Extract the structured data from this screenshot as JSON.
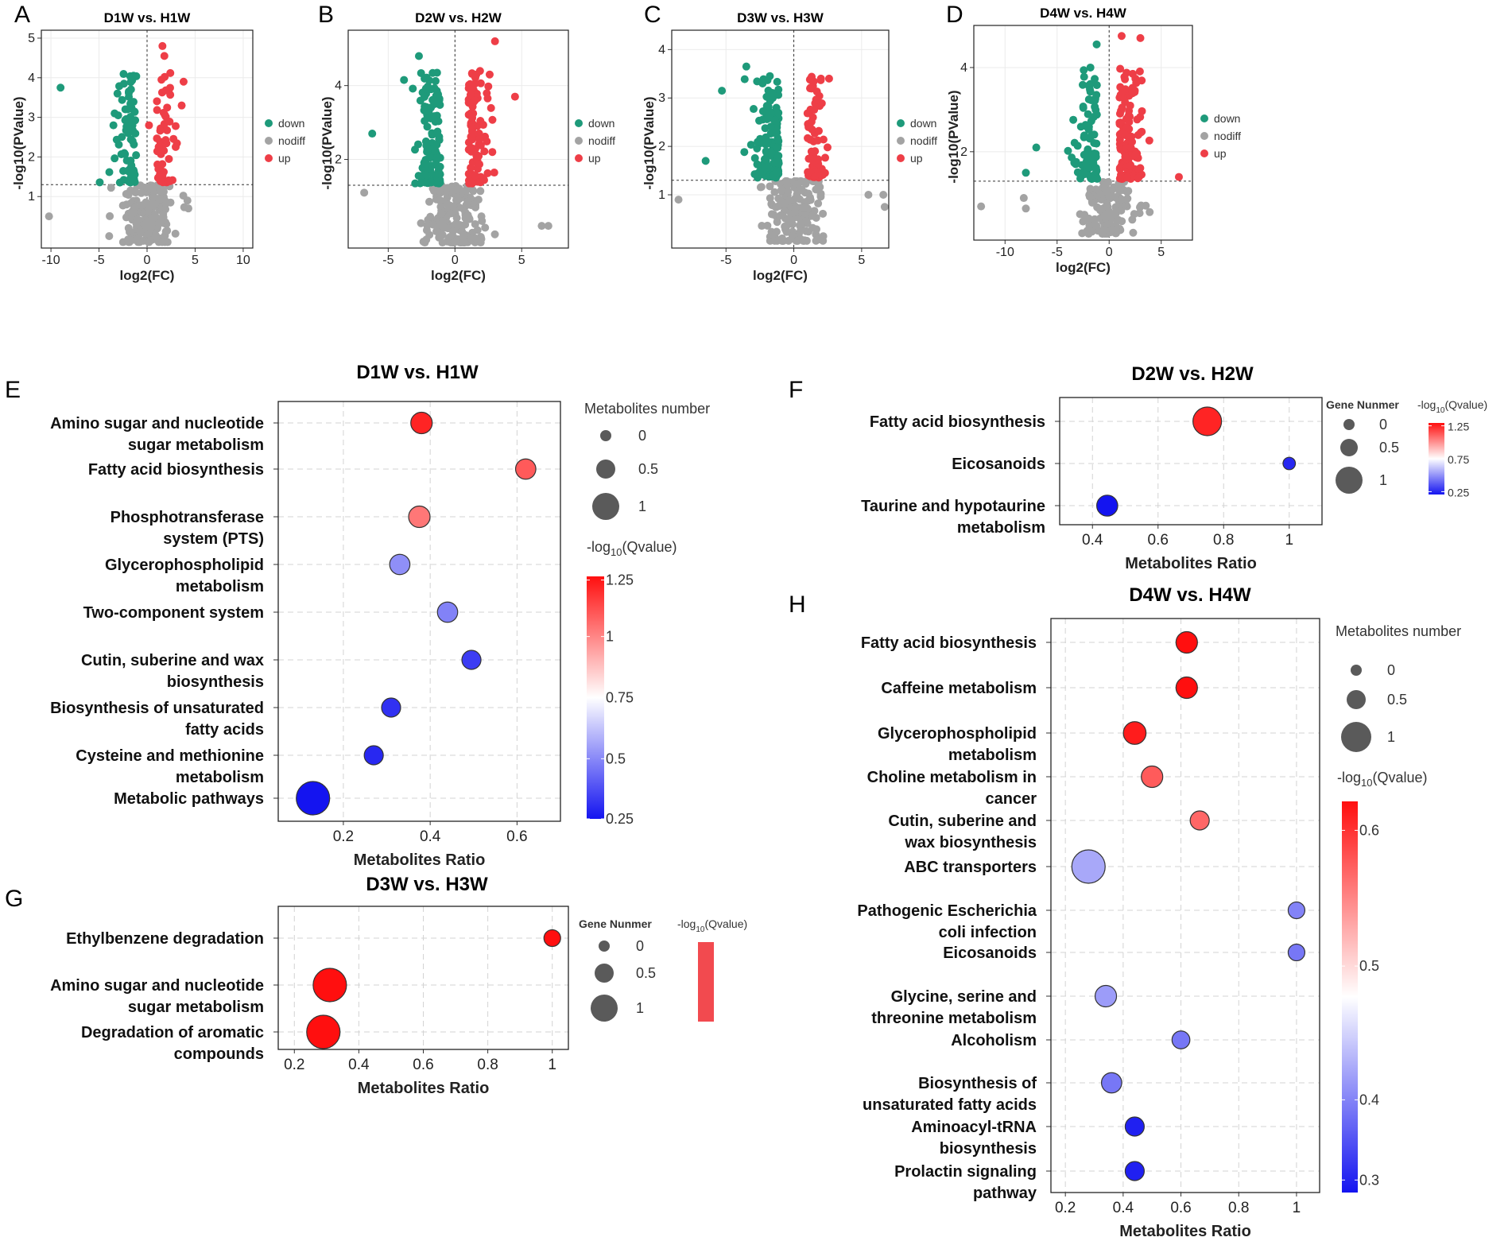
{
  "volcano_panels": [
    {
      "label": "A",
      "title": "D1W vs. H1W",
      "xlabel": "log2(FC)",
      "ylabel": "-log10(PValue)",
      "xlim": [
        -11,
        11
      ],
      "ylim": [
        -0.3,
        5.2
      ],
      "xticks": [
        -10,
        -5,
        0,
        5,
        10
      ],
      "yticks": [
        1,
        2,
        3,
        4,
        5
      ],
      "threshold": 1.3,
      "legend": [
        "down",
        "nodiff",
        "up"
      ],
      "seed": 11,
      "n_down": 70,
      "n_up": 50,
      "n_nodiff": 170,
      "highlights": {
        "down": [
          [
            -9,
            3.75
          ],
          [
            -2.4,
            3.85
          ],
          [
            -3.5,
            2.8
          ]
        ],
        "up": [
          [
            1.6,
            4.8
          ],
          [
            1.8,
            4.55
          ],
          [
            3.8,
            3.9
          ],
          [
            1.5,
            3.95
          ],
          [
            3.6,
            3.3
          ],
          [
            0.2,
            2.8
          ]
        ],
        "nodiff": [
          [
            -10.2,
            0.5
          ],
          [
            4.3,
            0.7
          ],
          [
            4.2,
            0.9
          ]
        ]
      }
    },
    {
      "label": "B",
      "title": "D2W vs. H2W",
      "xlabel": "log2(FC)",
      "ylabel": "-log10(PValue)",
      "xlim": [
        -8,
        8.5
      ],
      "ylim": [
        -0.4,
        5.5
      ],
      "xticks": [
        -5,
        0,
        5
      ],
      "yticks": [
        2,
        4
      ],
      "threshold": 1.3,
      "legend": [
        "down",
        "nodiff",
        "up"
      ],
      "seed": 23,
      "n_down": 110,
      "n_up": 90,
      "n_nodiff": 160,
      "highlights": {
        "down": [
          [
            -2.7,
            4.8
          ],
          [
            -1.8,
            3.9
          ],
          [
            -6.2,
            2.7
          ]
        ],
        "up": [
          [
            3,
            5.2
          ],
          [
            1.6,
            4.3
          ],
          [
            2.6,
            4.3
          ],
          [
            4.5,
            3.7
          ]
        ],
        "nodiff": [
          [
            6.5,
            0.2
          ],
          [
            7,
            0.2
          ],
          [
            -6.8,
            1.1
          ]
        ]
      }
    },
    {
      "label": "C",
      "title": "D3W vs. H3W",
      "xlabel": "log2(FC)",
      "ylabel": "-log10(PValue)",
      "xlim": [
        -9,
        7
      ],
      "ylim": [
        -0.1,
        4.4
      ],
      "xticks": [
        -5,
        0,
        5
      ],
      "yticks": [
        1,
        2,
        3,
        4
      ],
      "threshold": 1.3,
      "legend": [
        "down",
        "nodiff",
        "up"
      ],
      "seed": 37,
      "n_down": 120,
      "n_up": 60,
      "n_nodiff": 170,
      "highlights": {
        "down": [
          [
            -3.5,
            3.65
          ],
          [
            -2.3,
            3.3
          ],
          [
            -5.3,
            3.15
          ],
          [
            -6.5,
            1.7
          ]
        ],
        "up": [
          [
            2,
            3.4
          ],
          [
            2.6,
            3.4
          ],
          [
            1.2,
            3.2
          ]
        ],
        "nodiff": [
          [
            -8.5,
            0.9
          ],
          [
            6.6,
            1
          ],
          [
            6.7,
            0.75
          ],
          [
            5.5,
            1
          ]
        ]
      }
    },
    {
      "label": "D",
      "title": "D4W vs. H4W",
      "xlabel": "log2(FC)",
      "ylabel": "-log10(PValue)",
      "xlim": [
        -13,
        8
      ],
      "ylim": [
        -0.1,
        5
      ],
      "xticks": [
        -10,
        -5,
        0,
        5
      ],
      "yticks": [
        2,
        4
      ],
      "threshold": 1.3,
      "legend": [
        "down",
        "nodiff",
        "up"
      ],
      "seed": 53,
      "n_down": 80,
      "n_up": 130,
      "n_nodiff": 140,
      "highlights": {
        "down": [
          [
            -1.2,
            4.55
          ],
          [
            -1.8,
            4
          ],
          [
            -7,
            2.1
          ],
          [
            -8,
            1.5
          ]
        ],
        "up": [
          [
            1.2,
            4.75
          ],
          [
            3,
            4.7
          ],
          [
            6.7,
            1.4
          ]
        ],
        "nodiff": [
          [
            -12.3,
            0.7
          ],
          [
            -8.2,
            0.9
          ],
          [
            -8,
            0.65
          ]
        ]
      }
    }
  ],
  "chart_data": [
    {
      "type": "scatter",
      "panel": "E",
      "title": "D1W vs. H1W",
      "xlabel": "Metabolites Ratio",
      "xlim": [
        0.05,
        0.7
      ],
      "xticks": [
        0.2,
        0.4,
        0.6
      ],
      "xtick_labels": [
        "0.2",
        "0.4",
        "0.6"
      ],
      "pathways": [
        {
          "label": [
            "Amino sugar and nucleotide",
            "sugar metabolism"
          ],
          "ratio": 0.38,
          "size": 0.5,
          "q": 1.25
        },
        {
          "label": [
            "Fatty acid biosynthesis"
          ],
          "ratio": 0.62,
          "size": 0.45,
          "q": 1.12
        },
        {
          "label": [
            "Phosphotransferase",
            "system (PTS)"
          ],
          "ratio": 0.375,
          "size": 0.5,
          "q": 1.05
        },
        {
          "label": [
            "Glycerophospholipid",
            "metabolism"
          ],
          "ratio": 0.33,
          "size": 0.45,
          "q": 0.45
        },
        {
          "label": [
            "Two-component system"
          ],
          "ratio": 0.44,
          "size": 0.45,
          "q": 0.42
        },
        {
          "label": [
            "Cutin, suberine and wax",
            "biosynthesis"
          ],
          "ratio": 0.495,
          "size": 0.4,
          "q": 0.25
        },
        {
          "label": [
            "Biosynthesis of unsaturated",
            "fatty acids"
          ],
          "ratio": 0.31,
          "size": 0.4,
          "q": 0.22
        },
        {
          "label": [
            "Cysteine and methionine",
            "metabolism"
          ],
          "ratio": 0.27,
          "size": 0.4,
          "q": 0.2
        },
        {
          "label": [
            "Metabolic pathways"
          ],
          "ratio": 0.13,
          "size": 1.0,
          "q": 0.15
        }
      ],
      "size_legend_title": "Metabolites number",
      "size_legend": [
        "0",
        "0.5",
        "1"
      ],
      "color_legend": {
        "title": "-log",
        "sub": "10",
        "suffix": "(Qvalue)",
        "ticks": [
          "1.25",
          "1",
          "0.75",
          "0.5",
          "0.25"
        ],
        "range": [
          0.15,
          1.3
        ]
      }
    },
    {
      "type": "scatter",
      "panel": "F",
      "title": "D2W vs. H2W",
      "xlabel": "Metabolites Ratio",
      "xlim": [
        0.3,
        1.1
      ],
      "xticks": [
        0.4,
        0.6,
        0.8,
        1
      ],
      "xtick_labels": [
        "0.4",
        "0.6",
        "0.8",
        "1"
      ],
      "pathways": [
        {
          "label": [
            "Fatty acid biosynthesis"
          ],
          "ratio": 0.75,
          "size": 1.0,
          "q": 1.25
        },
        {
          "label": [
            "Eicosanoids"
          ],
          "ratio": 1.0,
          "size": 0.15,
          "q": 0.2
        },
        {
          "label": [
            "Taurine and hypotaurine",
            "metabolism"
          ],
          "ratio": 0.445,
          "size": 0.6,
          "q": 0.15
        }
      ],
      "size_legend_title": "Gene Nunmer",
      "size_legend": [
        "0",
        "0.5",
        "1"
      ],
      "color_legend": {
        "title": "-log",
        "sub": "10",
        "suffix": "(Qvalue)",
        "ticks": [
          "1.25",
          "0.75",
          "0.25"
        ],
        "range": [
          0.15,
          1.3
        ]
      }
    },
    {
      "type": "scatter",
      "panel": "G",
      "title": "D3W vs. H3W",
      "xlabel": "Metabolites Ratio",
      "xlim": [
        0.15,
        1.05
      ],
      "xticks": [
        0.2,
        0.4,
        0.6,
        0.8,
        1
      ],
      "xtick_labels": [
        "0.2",
        "0.4",
        "0.6",
        "0.8",
        "1"
      ],
      "pathways": [
        {
          "label": [
            "Ethylbenzene degradation"
          ],
          "ratio": 1.0,
          "size": 0.3,
          "q": 1.0
        },
        {
          "label": [
            "Amino sugar and nucleotide",
            "sugar metabolism"
          ],
          "ratio": 0.31,
          "size": 1.0,
          "q": 1.0
        },
        {
          "label": [
            "Degradation of aromatic",
            "compounds"
          ],
          "ratio": 0.29,
          "size": 1.0,
          "q": 1.0
        }
      ],
      "size_legend_title": "Gene Nunmer",
      "size_legend": [
        "0",
        "0.5",
        "1"
      ],
      "color_legend": {
        "title": "-log",
        "sub": "10",
        "suffix": "(Qvalue)",
        "ticks": [],
        "range": [
          0,
          1
        ]
      }
    },
    {
      "type": "scatter",
      "panel": "H",
      "title": "D4W vs. H4W",
      "xlabel": "Metabolites Ratio",
      "xlim": [
        0.15,
        1.08
      ],
      "xticks": [
        0.2,
        0.4,
        0.6,
        0.8,
        1
      ],
      "xtick_labels": [
        "0.2",
        "0.4",
        "0.6",
        "0.8",
        "1"
      ],
      "pathways": [
        {
          "label": [
            "Fatty acid biosynthesis"
          ],
          "ratio": 0.62,
          "size": 0.5,
          "q": 0.66
        },
        {
          "label": [
            "Caffeine metabolism"
          ],
          "ratio": 0.62,
          "size": 0.5,
          "q": 0.66
        },
        {
          "label": [
            "Glycerophospholipid",
            "metabolism"
          ],
          "ratio": 0.44,
          "size": 0.55,
          "q": 0.65
        },
        {
          "label": [
            "Choline metabolism in",
            "cancer"
          ],
          "ratio": 0.5,
          "size": 0.5,
          "q": 0.6
        },
        {
          "label": [
            "Cutin, suberine and",
            "wax biosynthesis"
          ],
          "ratio": 0.665,
          "size": 0.4,
          "q": 0.59
        },
        {
          "label": [
            "ABC transporters"
          ],
          "ratio": 0.28,
          "size": 1.0,
          "q": 0.4
        },
        {
          "label": [
            "Pathogenic Escherichia",
            "coli infection"
          ],
          "ratio": 1.0,
          "size": 0.3,
          "q": 0.37
        },
        {
          "label": [
            "Eicosanoids"
          ],
          "ratio": 1.0,
          "size": 0.3,
          "q": 0.36
        },
        {
          "label": [
            "Glycine, serine and",
            "threonine metabolism"
          ],
          "ratio": 0.34,
          "size": 0.5,
          "q": 0.39
        },
        {
          "label": [
            "Alcoholism"
          ],
          "ratio": 0.6,
          "size": 0.35,
          "q": 0.36
        },
        {
          "label": [
            "Biosynthesis of",
            "unsaturated fatty acids"
          ],
          "ratio": 0.36,
          "size": 0.45,
          "q": 0.36
        },
        {
          "label": [
            "Aminoacyl-tRNA",
            "biosynthesis"
          ],
          "ratio": 0.44,
          "size": 0.4,
          "q": 0.29
        },
        {
          "label": [
            "Prolactin signaling",
            "pathway"
          ],
          "ratio": 0.44,
          "size": 0.4,
          "q": 0.29
        }
      ],
      "size_legend_title": "Metabolites number",
      "size_legend": [
        "0",
        "0.5",
        "1"
      ],
      "color_legend": {
        "title": "-log",
        "sub": "10",
        "suffix": "(Qvalue)",
        "ticks": [
          "0.6",
          "0.5",
          "0.4",
          "0.3"
        ],
        "range": [
          0.28,
          0.66
        ]
      }
    }
  ],
  "colors": {
    "down": "#1e9a7a",
    "nodiff": "#a3a3a3",
    "up": "#ee3e47",
    "q_low": "#1414f0",
    "q_mid": "#ffffff",
    "q_high": "#ff0f0f"
  }
}
